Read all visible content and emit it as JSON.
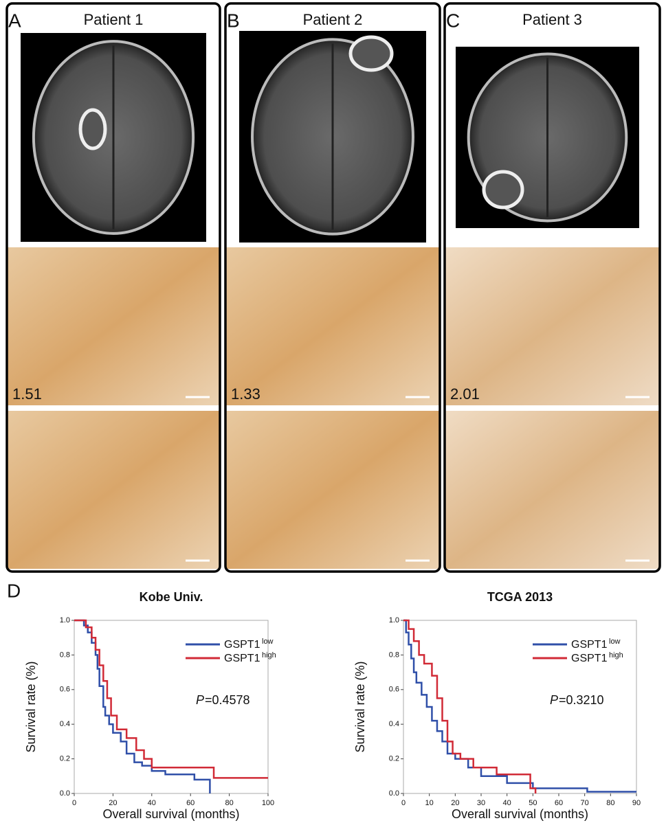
{
  "panels": [
    {
      "label": "A",
      "title": "Patient 1",
      "score": 1.51
    },
    {
      "label": "B",
      "title": "Patient 2",
      "score": 1.33
    },
    {
      "label": "C",
      "title": "Patient 3",
      "score": 2.01
    }
  ],
  "panel_d_label": "D",
  "chart_data": [
    {
      "type": "line",
      "title": "Kobe Univ.",
      "x_label": "Overall survival (months)",
      "y_label": "Survival rate (%)",
      "xlim": [
        0,
        100
      ],
      "xticks": [
        0,
        20,
        40,
        60,
        80,
        100
      ],
      "ylim": [
        0,
        1
      ],
      "yticks": [
        {
          "value": 0,
          "label": "0.0"
        },
        0.2,
        0.4,
        0.6,
        0.8,
        {
          "value": 1,
          "label": "1.0"
        }
      ],
      "annotation": {
        "italic": "P",
        "text": "=0.4578"
      },
      "series": [
        {
          "name": "GSPT1",
          "sup": "low",
          "color": "#2f4fa8",
          "x": [
            0,
            5,
            5,
            7,
            7,
            9,
            9,
            11,
            11,
            12,
            12,
            13,
            13,
            15,
            15,
            16,
            16,
            18,
            18,
            20,
            20,
            24,
            24,
            27,
            27,
            31,
            31,
            35,
            35,
            40,
            40,
            47,
            47,
            62,
            62,
            70,
            70
          ],
          "values": [
            1,
            1,
            0.97,
            0.97,
            0.93,
            0.93,
            0.87,
            0.87,
            0.8,
            0.8,
            0.72,
            0.72,
            0.62,
            0.62,
            0.5,
            0.5,
            0.45,
            0.45,
            0.4,
            0.4,
            0.35,
            0.35,
            0.3,
            0.3,
            0.23,
            0.23,
            0.18,
            0.18,
            0.16,
            0.16,
            0.13,
            0.13,
            0.11,
            0.11,
            0.08,
            0.08,
            0
          ]
        },
        {
          "name": "GSPT1",
          "sup": "high",
          "color": "#d12a36",
          "x": [
            0,
            6,
            6,
            9,
            9,
            11,
            11,
            13,
            13,
            15,
            15,
            17,
            17,
            19,
            19,
            22,
            22,
            27,
            27,
            32,
            32,
            36,
            36,
            40,
            40,
            72,
            72,
            100
          ],
          "values": [
            1,
            1,
            0.96,
            0.96,
            0.9,
            0.9,
            0.83,
            0.83,
            0.74,
            0.74,
            0.65,
            0.65,
            0.55,
            0.55,
            0.45,
            0.45,
            0.37,
            0.37,
            0.32,
            0.32,
            0.25,
            0.25,
            0.2,
            0.2,
            0.15,
            0.15,
            0.09,
            0.09
          ]
        }
      ]
    },
    {
      "type": "line",
      "title": "TCGA 2013",
      "x_label": "Overall survival (months)",
      "y_label": "Survival rate (%)",
      "xlim": [
        0,
        90
      ],
      "xticks": [
        0,
        10,
        20,
        30,
        40,
        50,
        60,
        70,
        80,
        90
      ],
      "ylim": [
        0,
        1
      ],
      "yticks": [
        {
          "value": 0,
          "label": "0.0"
        },
        0.2,
        0.4,
        0.6,
        0.8,
        {
          "value": 1,
          "label": "1.0"
        }
      ],
      "annotation": {
        "italic": "P",
        "text": "=0.3210"
      },
      "series": [
        {
          "name": "GSPT1",
          "sup": "low",
          "color": "#2f4fa8",
          "x": [
            0,
            1,
            1,
            2,
            2,
            3,
            3,
            4,
            4,
            5,
            5,
            7,
            7,
            9,
            9,
            11,
            11,
            13,
            13,
            15,
            15,
            17,
            17,
            20,
            20,
            25,
            25,
            30,
            30,
            40,
            40,
            50,
            50,
            71,
            71,
            90
          ],
          "values": [
            1,
            1,
            0.93,
            0.93,
            0.86,
            0.86,
            0.78,
            0.78,
            0.7,
            0.7,
            0.64,
            0.64,
            0.57,
            0.57,
            0.5,
            0.5,
            0.42,
            0.42,
            0.36,
            0.36,
            0.3,
            0.3,
            0.23,
            0.23,
            0.2,
            0.2,
            0.15,
            0.15,
            0.1,
            0.1,
            0.06,
            0.06,
            0.03,
            0.03,
            0.01,
            0.01
          ]
        },
        {
          "name": "GSPT1",
          "sup": "high",
          "color": "#d12a36",
          "x": [
            0,
            2,
            2,
            4,
            4,
            6,
            6,
            8,
            8,
            11,
            11,
            13,
            13,
            15,
            15,
            17,
            17,
            19,
            19,
            22,
            22,
            27,
            27,
            36,
            36,
            49,
            49,
            51,
            51
          ],
          "values": [
            1,
            1,
            0.95,
            0.95,
            0.88,
            0.88,
            0.8,
            0.8,
            0.75,
            0.75,
            0.68,
            0.68,
            0.55,
            0.55,
            0.42,
            0.42,
            0.3,
            0.3,
            0.23,
            0.23,
            0.2,
            0.2,
            0.15,
            0.15,
            0.11,
            0.11,
            0.03,
            0.03,
            0
          ]
        }
      ]
    }
  ]
}
